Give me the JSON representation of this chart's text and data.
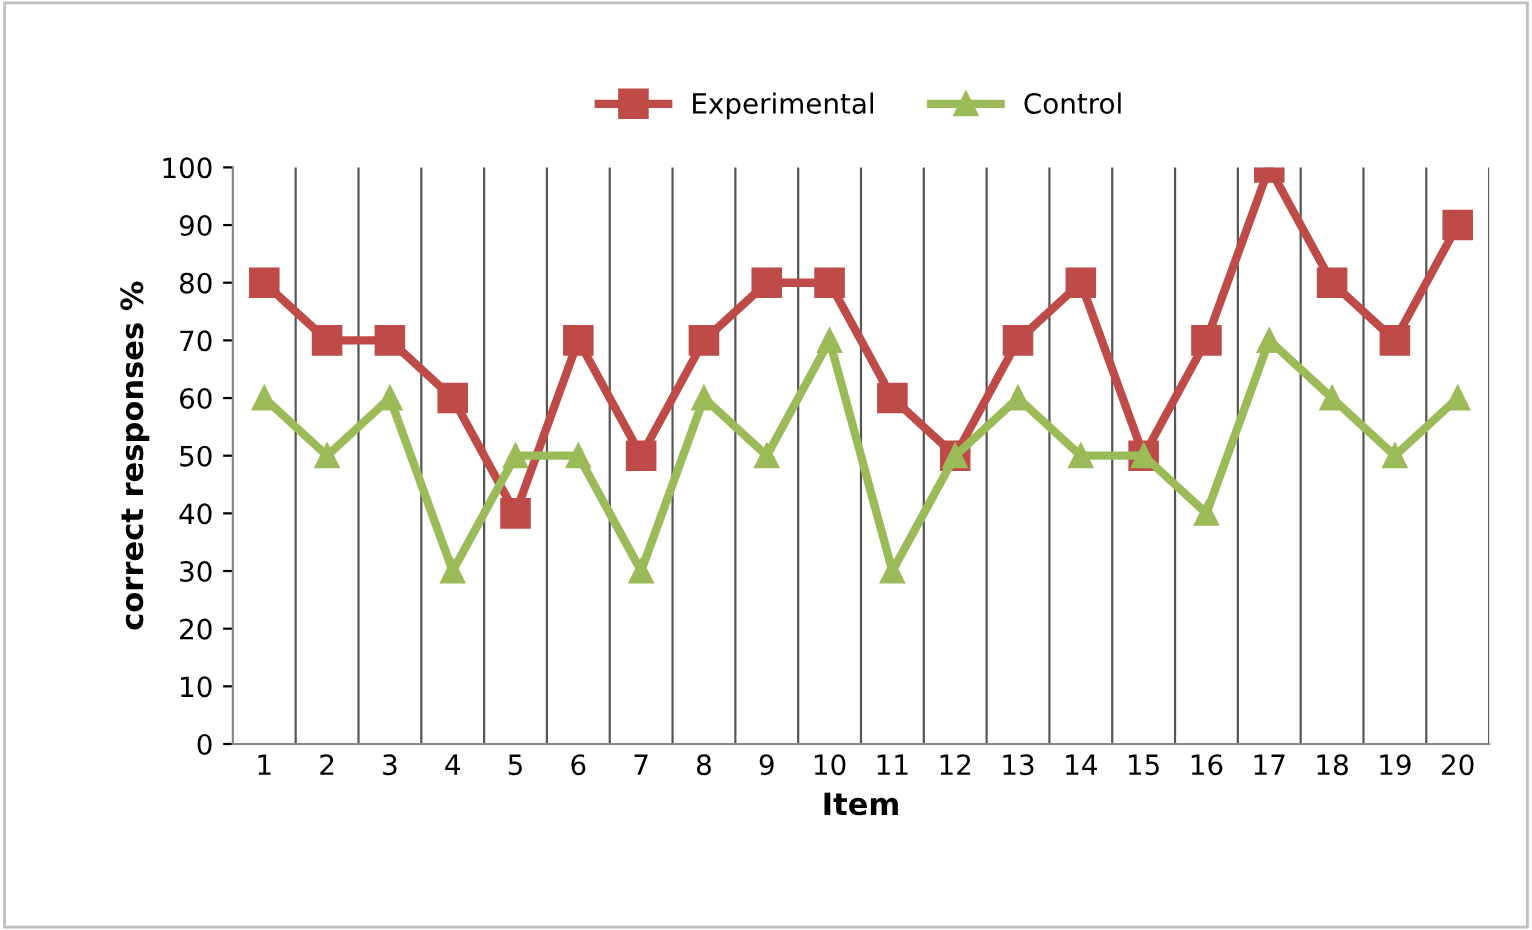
{
  "chart_data": {
    "type": "line",
    "xlabel": "Item",
    "ylabel": "correct responses %",
    "categories": [
      "1",
      "2",
      "3",
      "4",
      "5",
      "6",
      "7",
      "8",
      "9",
      "10",
      "11",
      "12",
      "13",
      "14",
      "15",
      "16",
      "17",
      "18",
      "19",
      "20"
    ],
    "series": [
      {
        "name": "Experimental",
        "color": "#be4b48",
        "marker": "square",
        "values": [
          80,
          70,
          70,
          60,
          40,
          70,
          50,
          70,
          80,
          80,
          60,
          50,
          70,
          80,
          50,
          70,
          100,
          80,
          70,
          90
        ]
      },
      {
        "name": "Control",
        "color": "#9bbb59",
        "marker": "triangle",
        "values": [
          60,
          50,
          60,
          30,
          50,
          50,
          30,
          60,
          50,
          70,
          30,
          50,
          60,
          50,
          50,
          40,
          70,
          60,
          50,
          60
        ]
      }
    ],
    "ylim": [
      0,
      100
    ],
    "yticks": [
      0,
      10,
      20,
      30,
      40,
      50,
      60,
      70,
      80,
      90,
      100
    ],
    "grid": "x",
    "legend": "top",
    "line_style": "solid"
  }
}
